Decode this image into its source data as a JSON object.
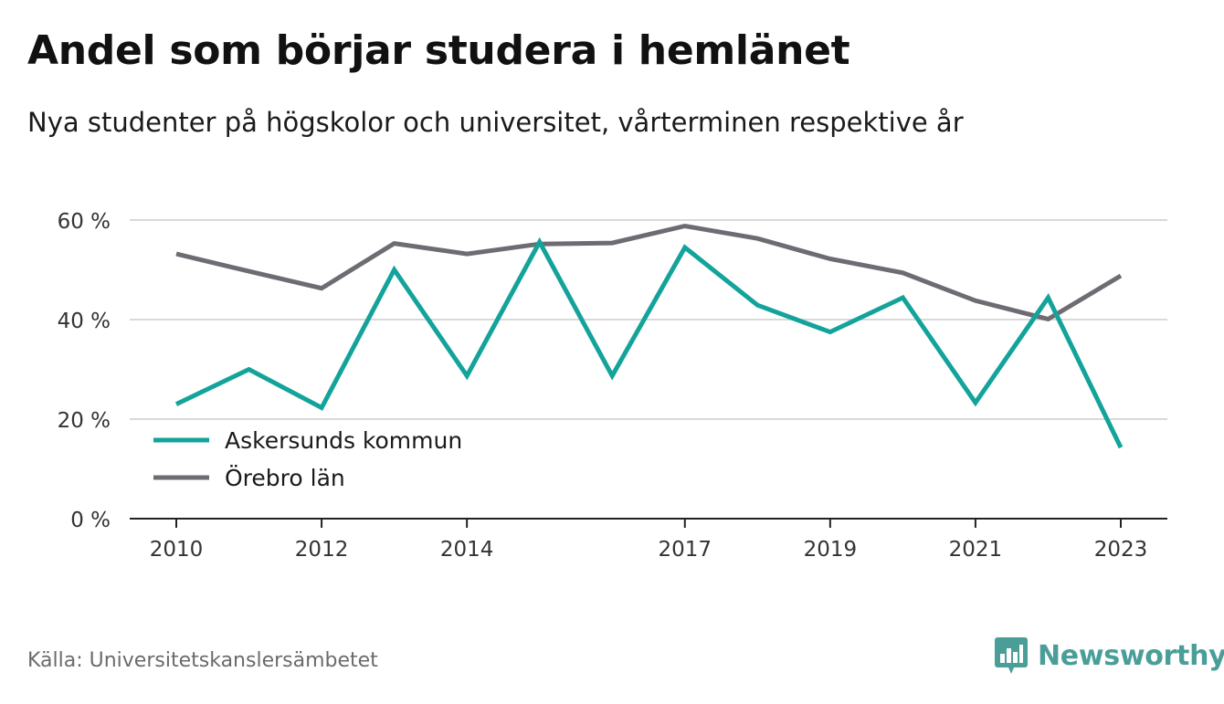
{
  "header": {
    "title": "Andel som börjar studera i hemlänet",
    "subtitle": "Nya studenter på högskolor och universitet, vårterminen respektive år"
  },
  "footer": {
    "source": "Källa: Universitetskanslersämbetet",
    "brand": "Newsworthy",
    "brand_icon": "bar-chart-speech-bubble-icon"
  },
  "colors": {
    "askersund": "#13a39b",
    "orebro": "#6e6c72",
    "grid": "#d9d9d9",
    "axis": "#222222",
    "brand": "#4a9e98"
  },
  "chart_data": {
    "type": "line",
    "x": [
      2010,
      2011,
      2012,
      2013,
      2014,
      2015,
      2016,
      2017,
      2018,
      2019,
      2020,
      2021,
      2022,
      2023
    ],
    "x_ticks": [
      "2010",
      "2012",
      "2014",
      "2017",
      "2019",
      "2021",
      "2023"
    ],
    "y_ticks": [
      "0 %",
      "20 %",
      "40 %",
      "60 %"
    ],
    "y_tick_values": [
      0,
      20,
      40,
      60
    ],
    "ylim": [
      0,
      60
    ],
    "xlim": [
      2010,
      2023
    ],
    "grid": true,
    "legend_position": "bottom-left",
    "series": [
      {
        "name": "Askersunds kommun",
        "color": "#13a39b",
        "values": [
          23,
          30,
          22.3,
          50,
          28.7,
          55.6,
          28.7,
          54.5,
          42.9,
          37.5,
          44.4,
          23.3,
          44.4,
          14.3
        ]
      },
      {
        "name": "Örebro län",
        "color": "#6e6c72",
        "values": [
          53.2,
          49.7,
          46.3,
          55.3,
          53.2,
          55.2,
          55.4,
          58.8,
          56.3,
          52.2,
          49.4,
          43.8,
          40.1,
          48.8
        ]
      }
    ]
  }
}
